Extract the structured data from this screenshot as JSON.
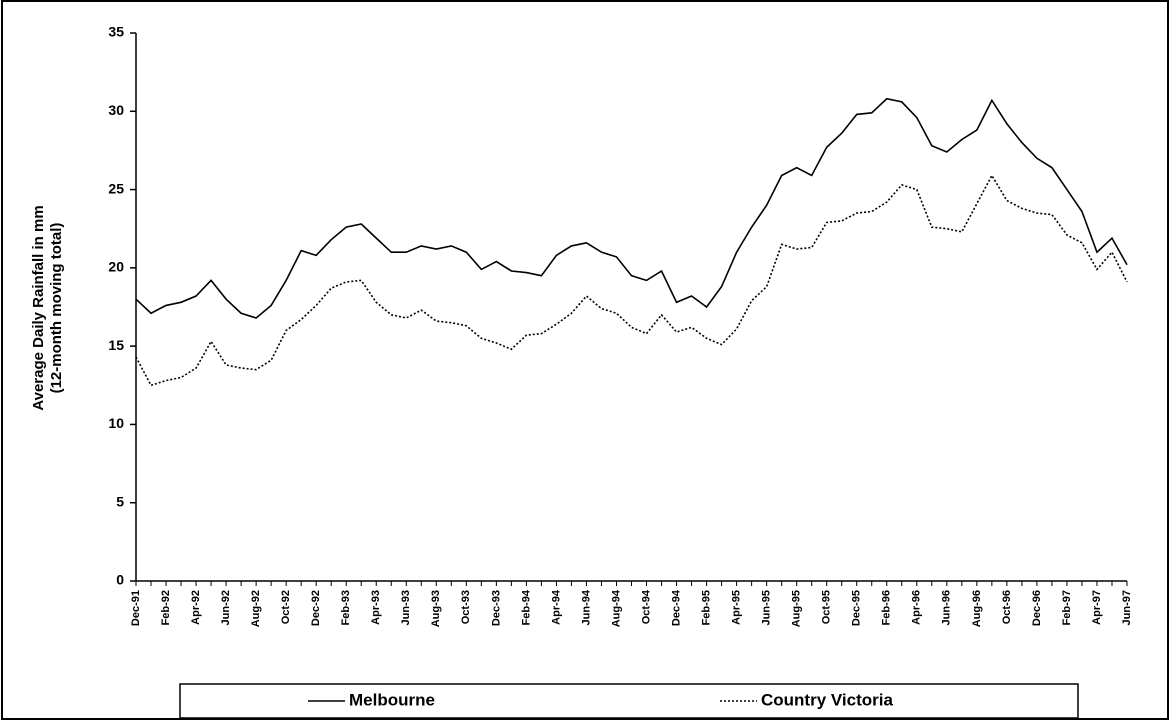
{
  "chart_data": {
    "type": "line",
    "y_label": [
      "Average Daily Rainfall in mm",
      "(12-month moving total)"
    ],
    "categories": [
      "Dec-91",
      null,
      "Feb-92",
      null,
      "Apr-92",
      null,
      "Jun-92",
      null,
      "Aug-92",
      null,
      "Oct-92",
      null,
      "Dec-92",
      null,
      "Feb-93",
      null,
      "Apr-93",
      null,
      "Jun-93",
      null,
      "Aug-93",
      null,
      "Oct-93",
      null,
      "Dec-93",
      null,
      "Feb-94",
      null,
      "Apr-94",
      null,
      "Jun-94",
      null,
      "Aug-94",
      null,
      "Oct-94",
      null,
      "Dec-94",
      null,
      "Feb-95",
      null,
      "Apr-95",
      null,
      "Jun-95",
      null,
      "Aug-95",
      null,
      "Oct-95",
      null,
      "Dec-95",
      null,
      "Feb-96",
      null,
      "Apr-96",
      null,
      "Jun-96",
      null,
      "Aug-96",
      null,
      "Oct-96",
      null,
      "Dec-96",
      null,
      "Feb-97",
      null,
      "Apr-97",
      null,
      "Jun-97"
    ],
    "series": [
      {
        "name": "Melbourne",
        "color": "#000000",
        "style": "solid",
        "values": [
          18.0,
          17.1,
          17.6,
          17.8,
          18.2,
          19.2,
          18.0,
          17.1,
          16.8,
          17.6,
          19.2,
          21.1,
          20.8,
          21.8,
          22.6,
          22.8,
          21.9,
          21.0,
          21.0,
          21.4,
          21.2,
          21.4,
          21.0,
          19.9,
          20.4,
          19.8,
          19.7,
          19.5,
          20.8,
          21.4,
          21.6,
          21.0,
          20.7,
          19.5,
          19.2,
          19.8,
          17.8,
          18.2,
          17.5,
          18.8,
          21.0,
          22.6,
          24.0,
          25.9,
          26.4,
          25.9,
          27.7,
          28.6,
          29.8,
          29.9,
          30.8,
          30.6,
          29.6,
          27.8,
          27.4,
          28.2,
          28.8,
          30.7,
          29.2,
          28.0,
          27.0,
          26.4,
          25.0,
          23.6,
          21.0,
          21.9,
          20.2
        ]
      },
      {
        "name": "Country Victoria",
        "color": "#000000",
        "style": "dotted",
        "values": [
          14.3,
          12.5,
          12.8,
          13.0,
          13.6,
          15.3,
          13.8,
          13.6,
          13.5,
          14.1,
          16.0,
          16.7,
          17.6,
          18.7,
          19.1,
          19.2,
          17.8,
          17.0,
          16.8,
          17.3,
          16.6,
          16.5,
          16.3,
          15.5,
          15.2,
          14.8,
          15.7,
          15.8,
          16.4,
          17.1,
          18.2,
          17.4,
          17.1,
          16.2,
          15.8,
          17.0,
          15.9,
          16.2,
          15.5,
          15.1,
          16.1,
          17.9,
          18.8,
          21.5,
          21.2,
          21.3,
          22.9,
          23.0,
          23.5,
          23.6,
          24.2,
          25.3,
          25.0,
          22.6,
          22.5,
          22.3,
          24.1,
          25.9,
          24.3,
          23.8,
          23.5,
          23.4,
          22.1,
          21.6,
          19.9,
          21.0,
          19.1
        ]
      }
    ],
    "ylim": [
      0,
      35
    ],
    "yticks": [
      0,
      5,
      10,
      15,
      20,
      25,
      30,
      35
    ],
    "grid": false
  }
}
